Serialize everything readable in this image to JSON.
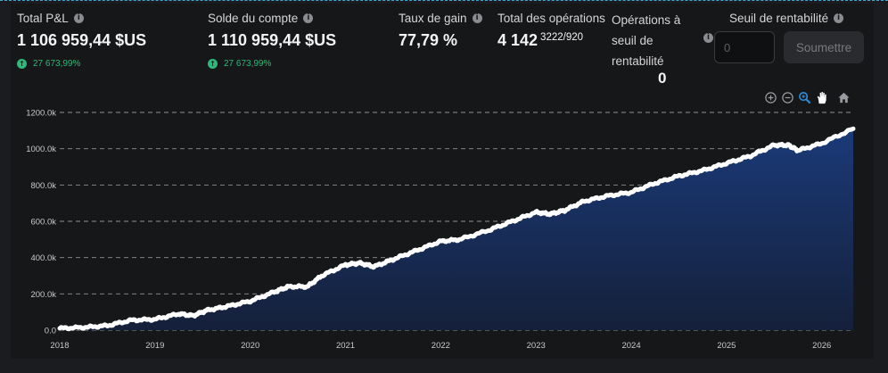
{
  "stats": {
    "total_pnl": {
      "label": "Total P&L",
      "value": "1 106 959,44 $US",
      "change": "27 673,99%"
    },
    "account_balance": {
      "label": "Solde du compte",
      "value": "1 110 959,44 $US",
      "change": "27 673,99%"
    },
    "win_rate": {
      "label": "Taux de gain",
      "value": "77,79 %"
    },
    "total_trades": {
      "label": "Total des opérations",
      "value": "4 142",
      "breakdown": "3222/920"
    },
    "breakeven_trades": {
      "label": "Opérations à seuil de rentabilité",
      "value": "0"
    }
  },
  "threshold": {
    "label": "Seuil de rentabilité",
    "placeholder": "0",
    "submit_label": "Soumettre"
  },
  "icons": {
    "info": "info-icon",
    "change": "arrow-up-circle-icon",
    "toolbar": [
      "zoom-in-icon",
      "zoom-out-icon",
      "magnify-icon",
      "pan-hand-icon",
      "home-icon"
    ]
  },
  "colors": {
    "background": "#161719",
    "line": "#ffffff",
    "area_top": "#1a3a78",
    "area_bottom": "#15203a",
    "positive": "#2fb879",
    "active_tool": "#2f8bd6"
  },
  "chart_data": {
    "type": "area",
    "title": "",
    "xlabel": "",
    "ylabel": "",
    "x": [
      2018.0,
      2018.25,
      2018.5,
      2018.75,
      2019.0,
      2019.25,
      2019.4,
      2019.55,
      2019.75,
      2020.0,
      2020.25,
      2020.4,
      2020.6,
      2020.75,
      2021.0,
      2021.15,
      2021.3,
      2021.5,
      2021.75,
      2022.0,
      2022.2,
      2022.5,
      2022.75,
      2023.0,
      2023.15,
      2023.3,
      2023.5,
      2023.75,
      2024.0,
      2024.25,
      2024.5,
      2024.75,
      2025.0,
      2025.25,
      2025.5,
      2025.65,
      2025.75,
      2026.0,
      2026.33
    ],
    "y": [
      10,
      15,
      25,
      55,
      60,
      90,
      80,
      110,
      130,
      160,
      210,
      240,
      240,
      300,
      360,
      370,
      350,
      390,
      440,
      490,
      500,
      550,
      600,
      650,
      640,
      660,
      710,
      740,
      760,
      810,
      850,
      880,
      920,
      960,
      1020,
      1020,
      990,
      1030,
      1110
    ],
    "ylim": [
      0,
      1200
    ],
    "xlim": [
      2018.0,
      2026.33
    ],
    "y_ticks": [
      "0.0",
      "200.0k",
      "400.0k",
      "600.0k",
      "800.0k",
      "1000.0k",
      "1200.0k"
    ],
    "x_ticks": [
      "2018",
      "2019",
      "2020",
      "2021",
      "2022",
      "2023",
      "2024",
      "2025",
      "2026"
    ],
    "grid": "horizontal-dashed",
    "legend": "none"
  }
}
